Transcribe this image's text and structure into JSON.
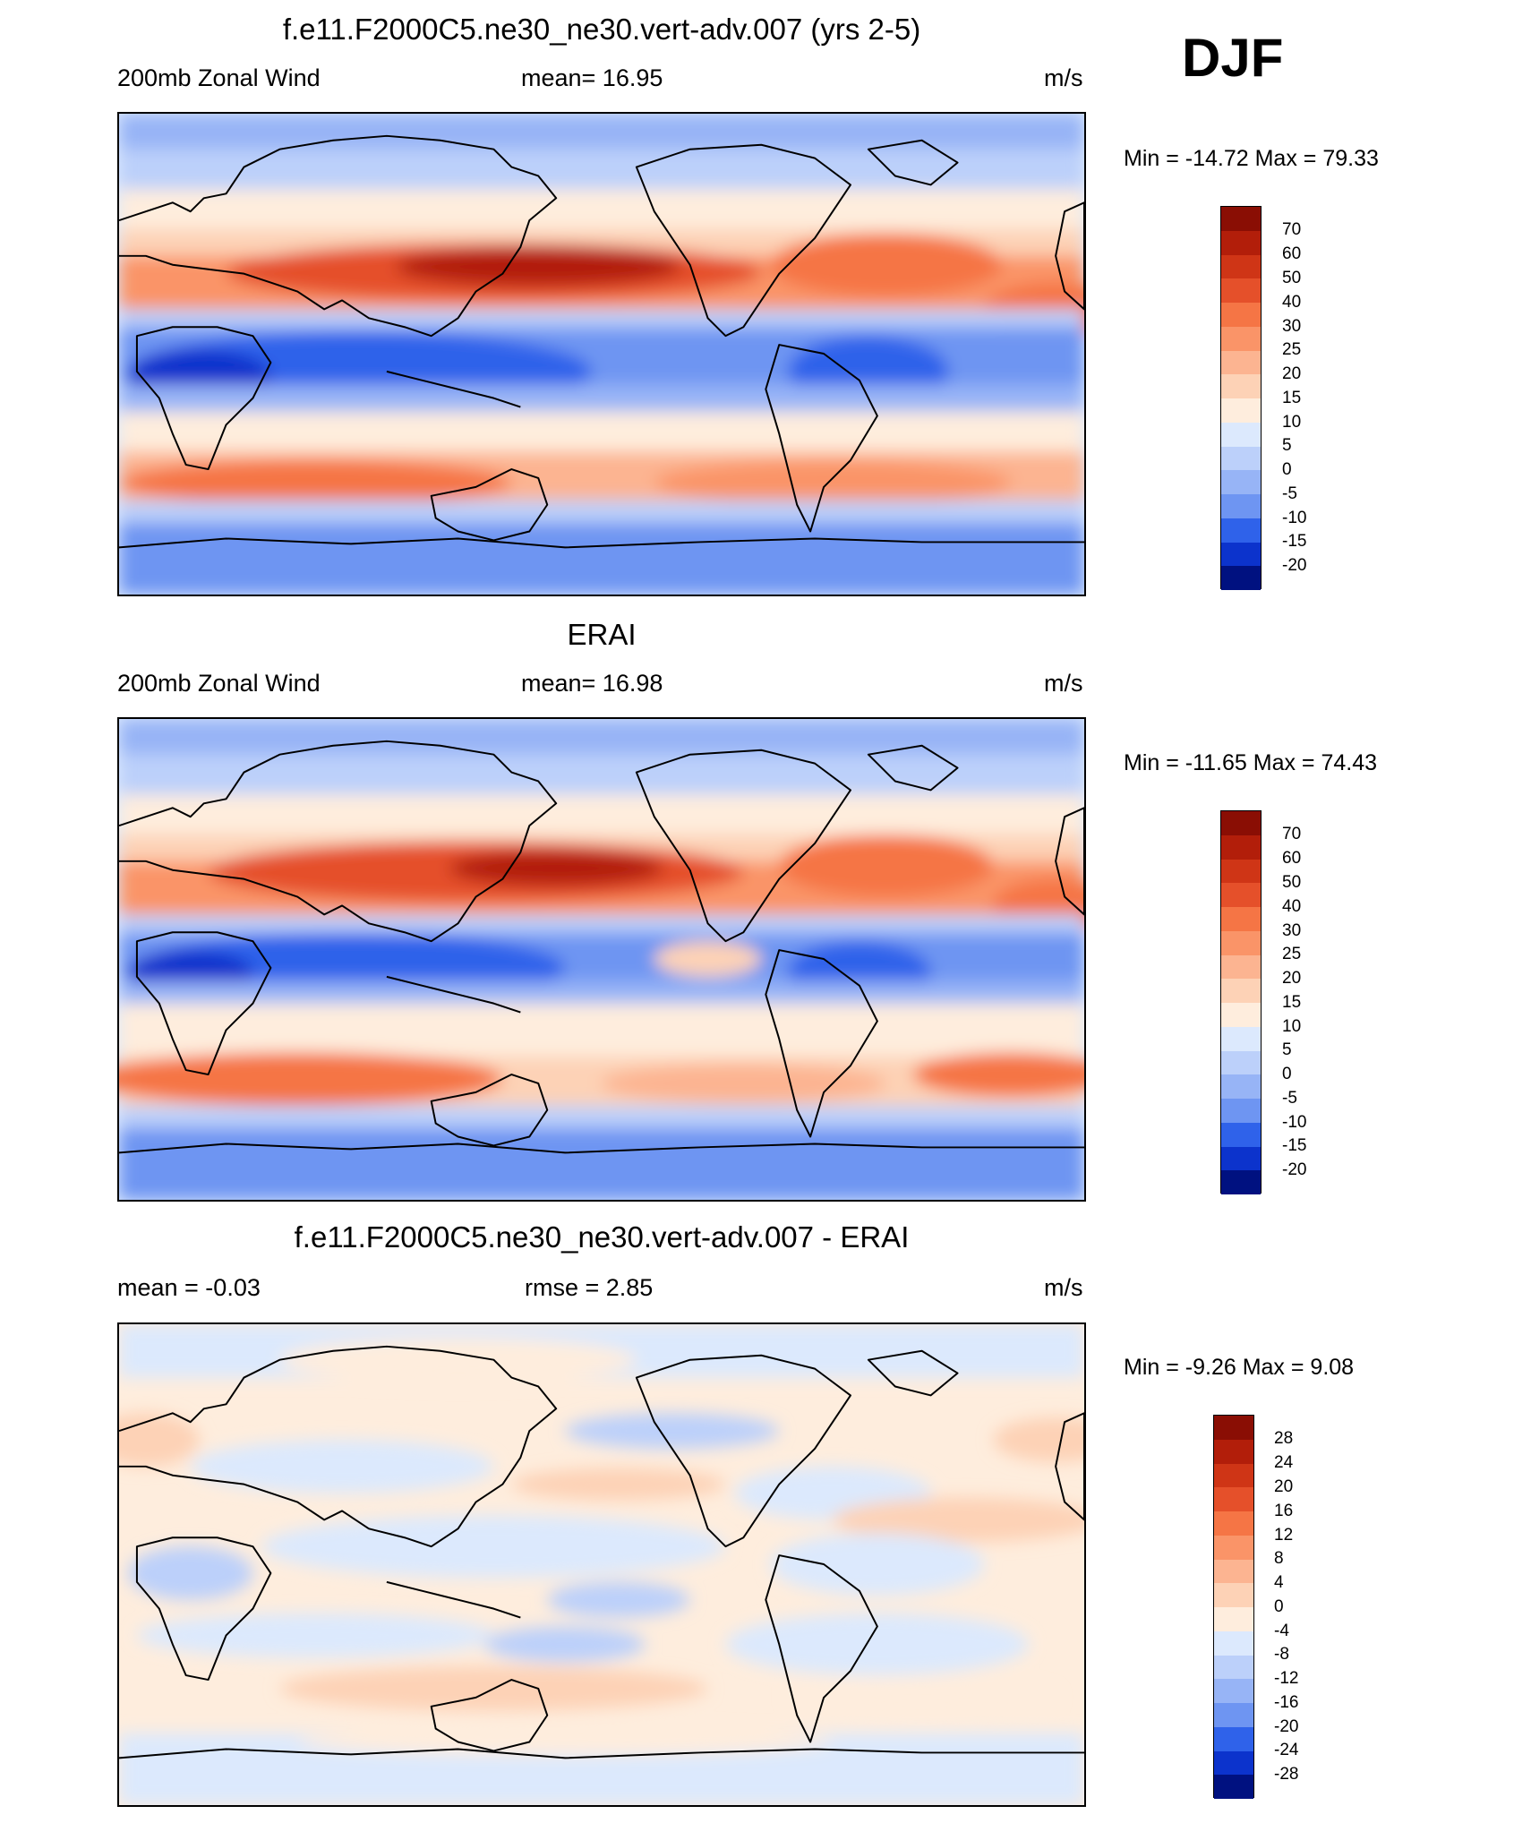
{
  "season": "DJF",
  "colors": {
    "wind_levels": [
      "#001180",
      "#0A23A8",
      "#0C33CC",
      "#1A46E0",
      "#2F62EA",
      "#4A7AEE",
      "#6E95F2",
      "#97B4F6",
      "#BCD0FA",
      "#DCE9FD",
      "#FEEDDD",
      "#FDD2B6",
      "#FCB491",
      "#FA9468",
      "#F57545",
      "#E5502A",
      "#CF3516",
      "#B21E0A",
      "#8A0E04"
    ],
    "diff_levels": [
      "#001180",
      "#0A23A8",
      "#0C33CC",
      "#1A46E0",
      "#2F62EA",
      "#4A7AEE",
      "#6E95F2",
      "#97B4F6",
      "#BCD0FA",
      "#DCE9FD",
      "#FEEDDD",
      "#FDD2B6",
      "#FCB491",
      "#FA9468",
      "#F57545",
      "#E5502A",
      "#CF3516",
      "#B21E0A",
      "#8A0E04"
    ]
  },
  "panels": [
    {
      "title": "f.e11.F2000C5.ne30_ne30.vert-adv.007 (yrs 2-5)",
      "left": "200mb Zonal Wind",
      "center": "mean=  16.95",
      "units": "m/s",
      "minmax": "Min = -14.72 Max =  79.33",
      "ticks": [
        "70",
        "60",
        "50",
        "40",
        "30",
        "25",
        "20",
        "15",
        "10",
        "5",
        "0",
        "-5",
        "-10",
        "-15",
        "-20"
      ]
    },
    {
      "title": "ERAI",
      "left": "200mb Zonal Wind",
      "center": "mean=  16.98",
      "units": "m/s",
      "minmax": "Min = -11.65 Max =  74.43",
      "ticks": [
        "70",
        "60",
        "50",
        "40",
        "30",
        "25",
        "20",
        "15",
        "10",
        "5",
        "0",
        "-5",
        "-10",
        "-15",
        "-20"
      ]
    },
    {
      "title": "f.e11.F2000C5.ne30_ne30.vert-adv.007 - ERAI",
      "left": "mean =  -0.03",
      "center": "rmse =   2.85",
      "units": "m/s",
      "minmax": "Min =  -9.26 Max =   9.08",
      "ticks": [
        "28",
        "24",
        "20",
        "16",
        "12",
        "8",
        "4",
        "0",
        "-4",
        "-8",
        "-12",
        "-16",
        "-20",
        "-24",
        "-28"
      ]
    }
  ]
}
